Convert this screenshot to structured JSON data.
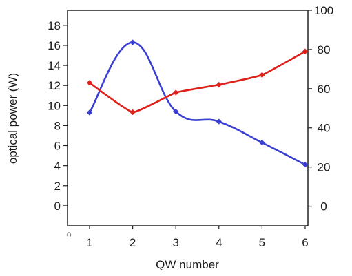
{
  "chart_data": {
    "type": "line",
    "xlabel": "QW number",
    "ylabel": "optical power (W)",
    "categories": [
      "1",
      "2",
      "3",
      "4",
      "5",
      "6"
    ],
    "corner_label": "0",
    "y_left": {
      "ylim": [
        -2,
        19.5
      ],
      "ticks": [
        "0",
        "2",
        "4",
        "6",
        "8",
        "10",
        "12",
        "14",
        "16",
        "18"
      ]
    },
    "y_right": {
      "ylim": [
        -10,
        100
      ],
      "ticks": [
        "0",
        "20",
        "40",
        "60",
        "80",
        "100"
      ]
    },
    "grid": false,
    "series": [
      {
        "axis": "left",
        "color": "#3a3fd1",
        "x": [
          1,
          2,
          3,
          4,
          5,
          6
        ],
        "values": [
          9.3,
          16.3,
          9.4,
          8.4,
          6.3,
          4.1
        ],
        "smooth": "curved"
      },
      {
        "axis": "right",
        "color": "#e0201b",
        "x": [
          1,
          2,
          3,
          4,
          5,
          6
        ],
        "values": [
          63,
          48,
          58,
          62,
          67,
          79
        ],
        "smooth": "slight"
      }
    ]
  }
}
